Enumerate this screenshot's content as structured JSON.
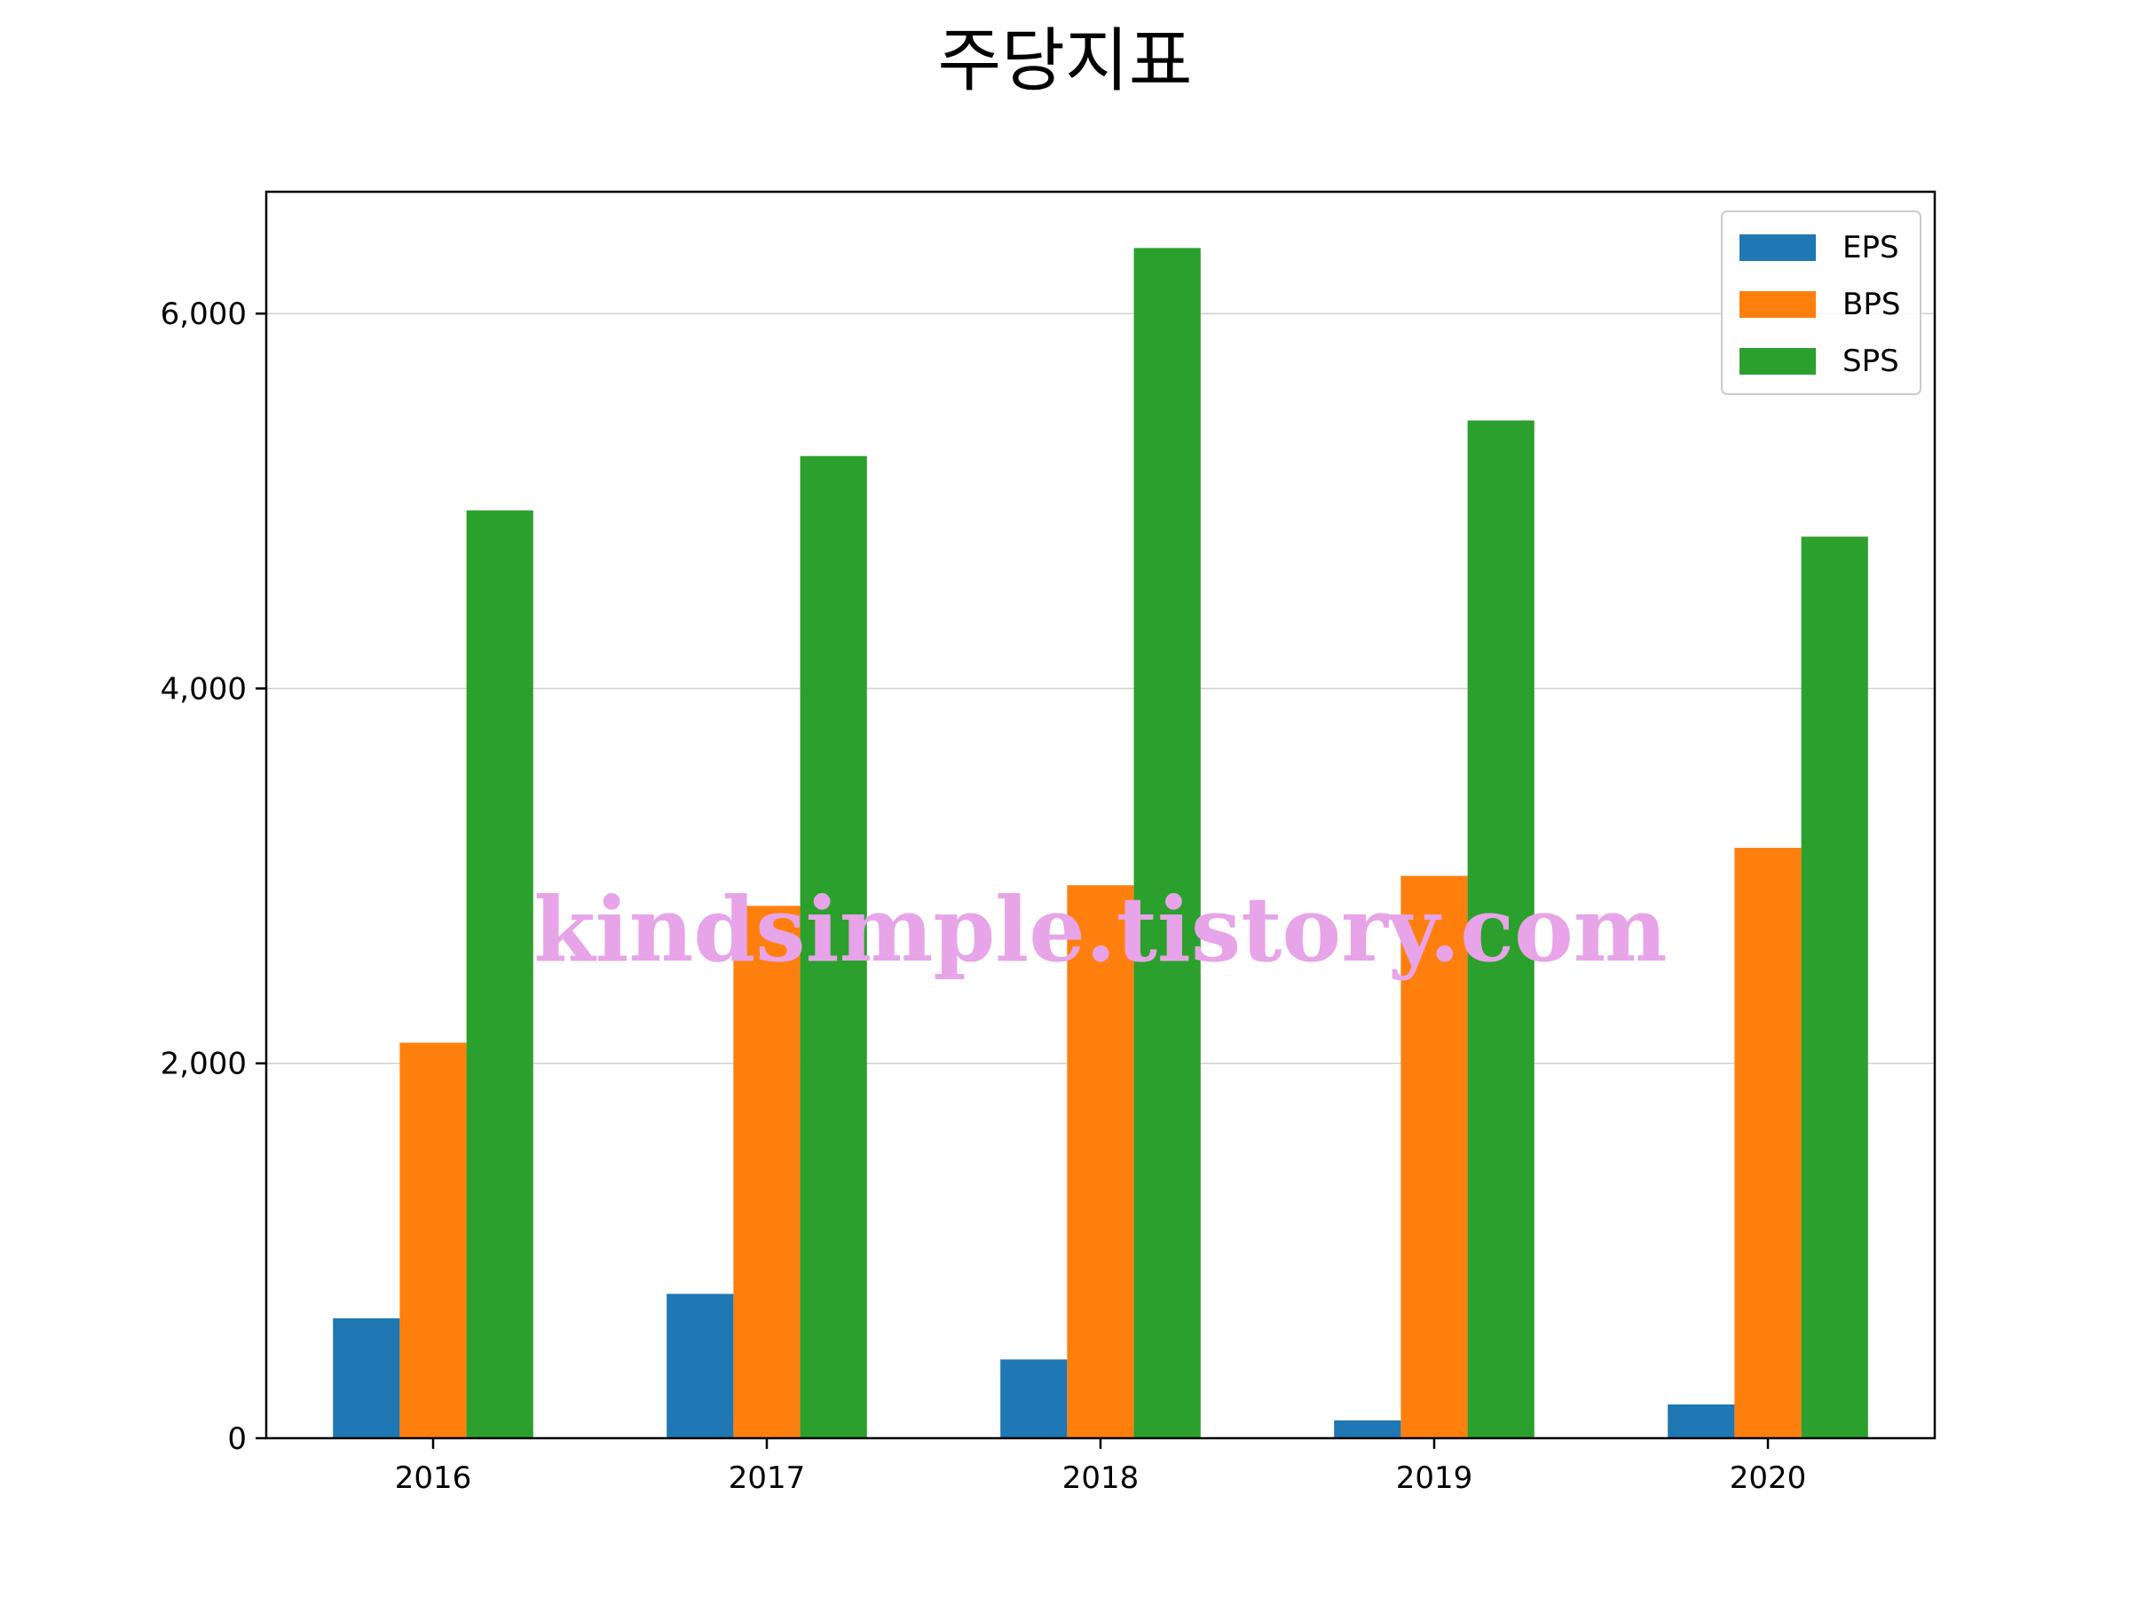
{
  "chart_data": {
    "type": "bar",
    "title": "주당지표",
    "xlabel": "",
    "ylabel": "",
    "categories": [
      "2016",
      "2017",
      "2018",
      "2019",
      "2020"
    ],
    "series": [
      {
        "name": "EPS",
        "color": "#1f77b4",
        "values": [
          640,
          770,
          420,
          95,
          180
        ]
      },
      {
        "name": "BPS",
        "color": "#ff7f0e",
        "values": [
          2110,
          2840,
          2950,
          3000,
          3150
        ]
      },
      {
        "name": "SPS",
        "color": "#2ca02c",
        "values": [
          4950,
          5240,
          6350,
          5430,
          4810
        ]
      }
    ],
    "ylim": [
      0,
      6650
    ],
    "yticks": [
      0,
      2000,
      4000,
      6000
    ],
    "ytick_labels": [
      "0",
      "2,000",
      "4,000",
      "6,000"
    ],
    "grid": "y",
    "legend": "upper right"
  },
  "watermark": {
    "text": "kindsimple.tistory.com",
    "color": "#e8a4e8"
  }
}
